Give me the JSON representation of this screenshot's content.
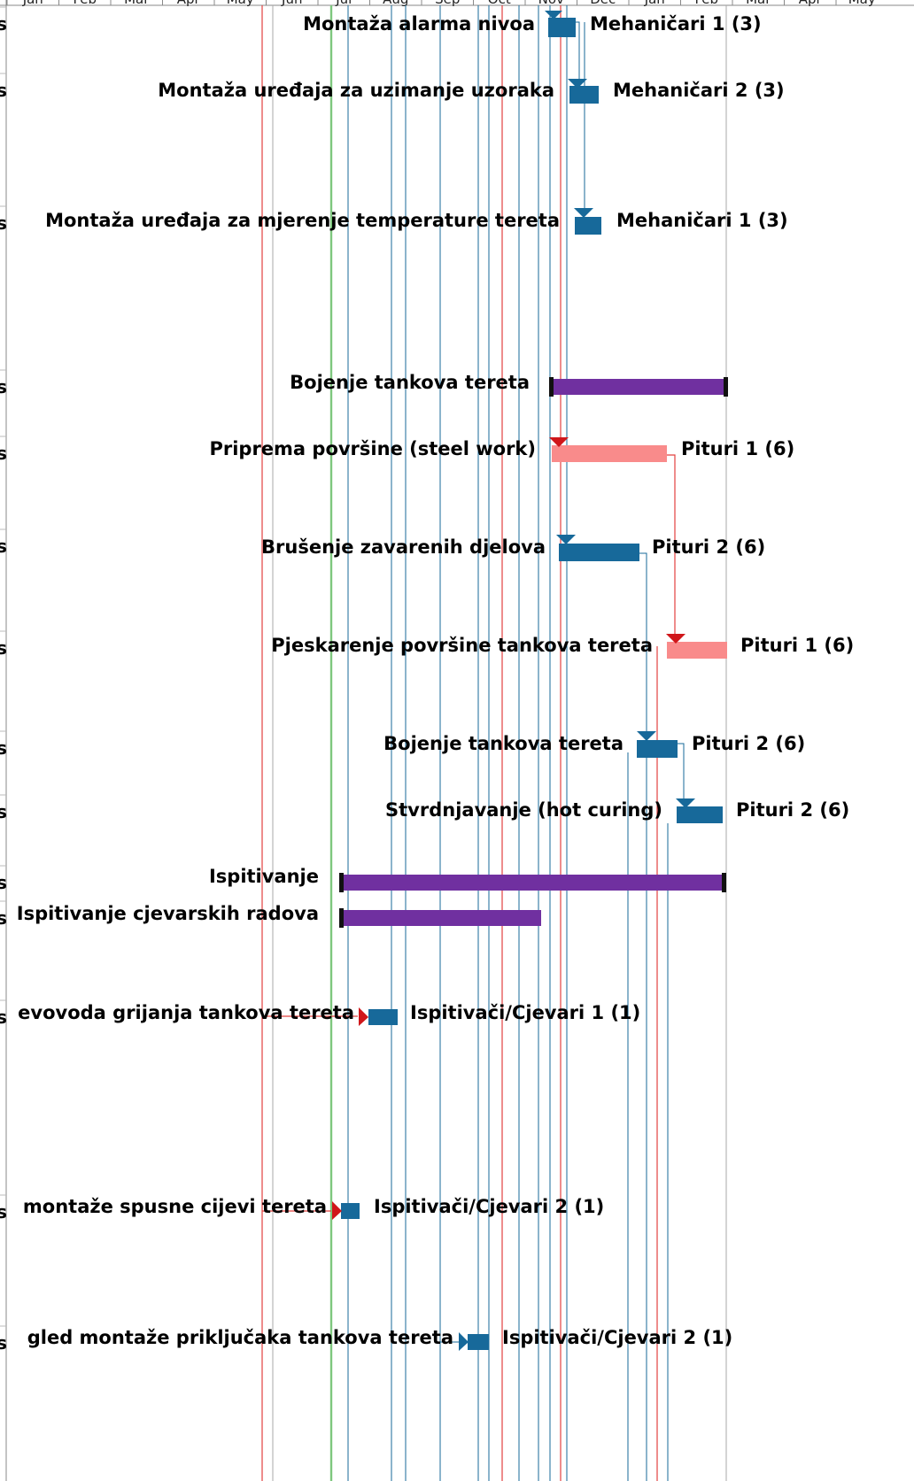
{
  "timeline": {
    "months": [
      "Jan",
      "Feb",
      "Mar",
      "Apr",
      "May",
      "Jun",
      "Jul",
      "Aug",
      "Sep",
      "Oct",
      "Nov",
      "Dec",
      "Jan",
      "Feb",
      "Mar",
      "Apr",
      "May"
    ]
  },
  "colors": {
    "task_blue": "#17699a",
    "summary_purple": "#7030a0",
    "critical_red": "#f98b8b",
    "critical_arrow": "#d0161a",
    "link_blue": "#17699a",
    "link_red": "#e2413f",
    "grid_gray": "#b8b8b8",
    "today_green": "#7ec77e"
  },
  "tasks": [
    {
      "name": "Montaža alarma nivoa",
      "resource": "Mehaničari 1 (3)",
      "kind": "task"
    },
    {
      "name": "Montaža uređaja za uzimanje uzoraka",
      "resource": "Mehaničari 2 (3)",
      "kind": "task"
    },
    {
      "name": "Montaža uređaja za mjerenje temperature tereta",
      "resource": "Mehaničari 1 (3)",
      "kind": "task"
    },
    {
      "name": "Bojenje tankova tereta",
      "resource": "",
      "kind": "summary"
    },
    {
      "name": "Priprema površine (steel work)",
      "resource": "Pituri 1 (6)",
      "kind": "critical"
    },
    {
      "name": "Brušenje zavarenih djelova",
      "resource": "Pituri 2 (6)",
      "kind": "task"
    },
    {
      "name": "Pjeskarenje površine tankova tereta",
      "resource": "Pituri 1 (6)",
      "kind": "critical"
    },
    {
      "name": "Bojenje tankova tereta",
      "resource": "Pituri 2 (6)",
      "kind": "task"
    },
    {
      "name": "Stvrdnjavanje (hot curing)",
      "resource": "Pituri 2 (6)",
      "kind": "task"
    },
    {
      "name": "Ispitivanje",
      "resource": "",
      "kind": "summary"
    },
    {
      "name": "Ispitivanje cjevarskih radova",
      "resource": "",
      "kind": "summary"
    },
    {
      "name": "evovoda grijanja tankova tereta",
      "resource": "Ispitivači/Cjevari 1 (1)",
      "kind": "task"
    },
    {
      "name": "montaže spusne cijevi tereta",
      "resource": "Ispitivači/Cjevari 2 (1)",
      "kind": "task"
    },
    {
      "name": "gled montaže priključaka tankova tereta",
      "resource": "Ispitivači/Cjevari 2 (1)",
      "kind": "task"
    }
  ],
  "row_marker": "s"
}
